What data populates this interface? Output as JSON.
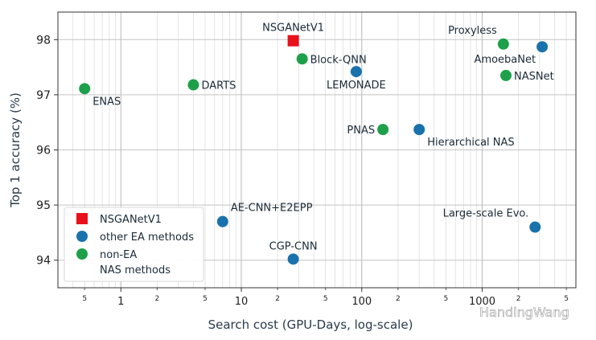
{
  "chart_data": {
    "type": "scatter",
    "xlabel": "Search cost (GPU-Days, log-scale)",
    "ylabel": "Top 1 accuracy (%)",
    "xscale": "log",
    "xlim": [
      0.3,
      6000
    ],
    "ylim": [
      93.5,
      98.5
    ],
    "grid": true,
    "x_ticks": [
      1,
      10,
      100,
      1000
    ],
    "x_tick_labels": [
      "1",
      "10",
      "100",
      "1000"
    ],
    "x_minor_labeled": [
      {
        "x": 0.5,
        "label": "5"
      },
      {
        "x": 2,
        "label": "2"
      },
      {
        "x": 5,
        "label": "5"
      },
      {
        "x": 20,
        "label": "2"
      },
      {
        "x": 50,
        "label": "5"
      },
      {
        "x": 200,
        "label": "2"
      },
      {
        "x": 500,
        "label": "5"
      },
      {
        "x": 2000,
        "label": "2"
      },
      {
        "x": 5000,
        "label": "5"
      }
    ],
    "y_ticks": [
      94,
      95,
      96,
      97,
      98
    ],
    "legend_position": "bottom-left",
    "series": [
      {
        "name": "NSGANetV1",
        "color": "#e8101a",
        "marker": "square",
        "points": [
          {
            "label": "NSGANetV1",
            "x": 27,
            "y": 97.98
          }
        ]
      },
      {
        "name": "other EA methods",
        "color": "#1a72ad",
        "marker": "circle",
        "points": [
          {
            "label": "LEMONADE",
            "x": 90,
            "y": 97.42
          },
          {
            "label": "",
            "x": 3150,
            "y": 97.87
          },
          {
            "label": "Hierarchical NAS",
            "x": 300,
            "y": 96.37
          },
          {
            "label": "AE-CNN+E2EPP",
            "x": 7,
            "y": 94.7
          },
          {
            "label": "CGP-CNN",
            "x": 27,
            "y": 94.02
          },
          {
            "label": "Large-scale Evo.",
            "x": 2750,
            "y": 94.6
          }
        ]
      },
      {
        "name": "non-EA\nNAS methods",
        "color": "#1ea04a",
        "marker": "circle",
        "points": [
          {
            "label": "ENAS",
            "x": 0.5,
            "y": 97.11
          },
          {
            "label": "DARTS",
            "x": 4,
            "y": 97.18
          },
          {
            "label": "Block-QNN",
            "x": 32,
            "y": 97.65
          },
          {
            "label": "PNAS",
            "x": 150,
            "y": 96.37
          },
          {
            "label": "Proxyless",
            "x": 1500,
            "y": 97.92
          },
          {
            "label": "NASNet",
            "x": 1575,
            "y": 97.35
          }
        ]
      }
    ],
    "point_annotations": [
      {
        "text": "NSGANetV1",
        "series": 0,
        "point": 0,
        "anchor": "above"
      },
      {
        "text": "LEMONADE",
        "series": 1,
        "point": 0,
        "anchor": "below"
      },
      {
        "text": "AmoebaNet",
        "series": 1,
        "point": 1,
        "anchor": "below-left"
      },
      {
        "text": "Hierarchical NAS",
        "series": 1,
        "point": 2,
        "anchor": "below-right"
      },
      {
        "text": "AE-CNN+E2EPP",
        "series": 1,
        "point": 3,
        "anchor": "above-right"
      },
      {
        "text": "CGP-CNN",
        "series": 1,
        "point": 4,
        "anchor": "above"
      },
      {
        "text": "Large-scale Evo.",
        "series": 1,
        "point": 5,
        "anchor": "above-left"
      },
      {
        "text": "ENAS",
        "series": 2,
        "point": 0,
        "anchor": "below-right"
      },
      {
        "text": "DARTS",
        "series": 2,
        "point": 1,
        "anchor": "right"
      },
      {
        "text": "Block-QNN",
        "series": 2,
        "point": 2,
        "anchor": "right"
      },
      {
        "text": "PNAS",
        "series": 2,
        "point": 3,
        "anchor": "left"
      },
      {
        "text": "Proxyless",
        "series": 2,
        "point": 4,
        "anchor": "above-left"
      },
      {
        "text": "NASNet",
        "series": 2,
        "point": 5,
        "anchor": "right"
      }
    ]
  },
  "watermark": {
    "text": "HandingWang",
    "icon": "wechat-icon"
  }
}
